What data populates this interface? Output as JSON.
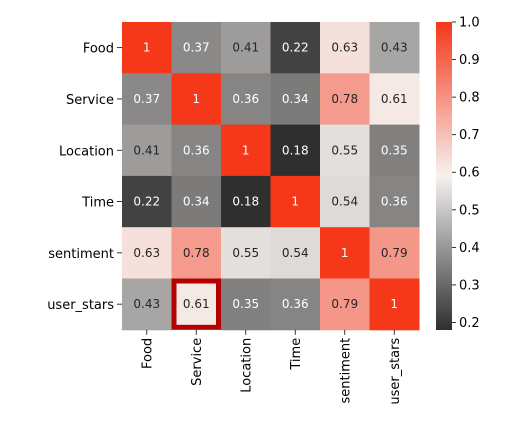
{
  "chart_data": {
    "type": "heatmap",
    "rows": [
      "Food",
      "Service",
      "Location",
      "Time",
      "sentiment",
      "user_stars"
    ],
    "cols": [
      "Food",
      "Service",
      "Location",
      "Time",
      "sentiment",
      "user_stars"
    ],
    "values": [
      [
        1,
        0.37,
        0.41,
        0.22,
        0.63,
        0.43
      ],
      [
        0.37,
        1,
        0.36,
        0.34,
        0.78,
        0.61
      ],
      [
        0.41,
        0.36,
        1,
        0.18,
        0.55,
        0.35
      ],
      [
        0.22,
        0.34,
        0.18,
        1,
        0.54,
        0.36
      ],
      [
        0.63,
        0.78,
        0.55,
        0.54,
        1,
        0.79
      ],
      [
        0.43,
        0.61,
        0.35,
        0.36,
        0.79,
        1
      ]
    ],
    "labels": [
      [
        "1",
        "0.37",
        "0.41",
        "0.22",
        "0.63",
        "0.43"
      ],
      [
        "0.37",
        "1",
        "0.36",
        "0.34",
        "0.78",
        "0.61"
      ],
      [
        "0.41",
        "0.36",
        "1",
        "0.18",
        "0.55",
        "0.35"
      ],
      [
        "0.22",
        "0.34",
        "0.18",
        "1",
        "0.54",
        "0.36"
      ],
      [
        "0.63",
        "0.78",
        "0.55",
        "0.54",
        "1",
        "0.79"
      ],
      [
        "0.43",
        "0.61",
        "0.35",
        "0.36",
        "0.79",
        "1"
      ]
    ],
    "colorbar": {
      "min": 0.18,
      "max": 1.0,
      "ticks": [
        "0.2",
        "0.3",
        "0.4",
        "0.5",
        "0.6",
        "0.7",
        "0.8",
        "0.9",
        "1.0"
      ],
      "colors": [
        "#2f2f2f",
        "#f5f2f0",
        "#f5371a"
      ]
    },
    "highlight": {
      "row": 5,
      "col": 1,
      "color": "#b30000"
    }
  }
}
